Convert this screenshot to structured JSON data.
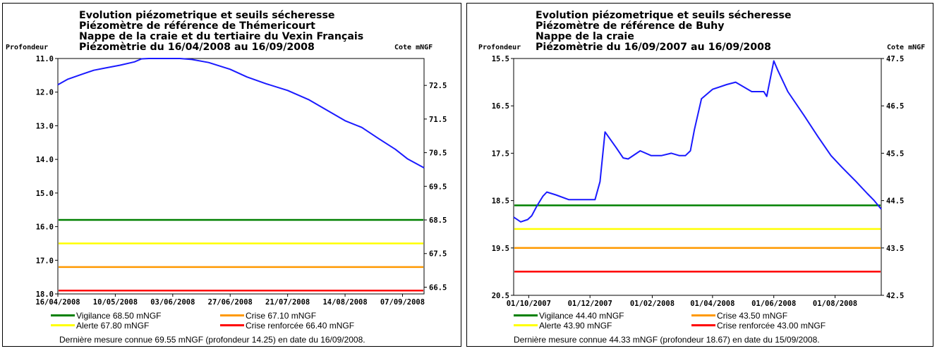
{
  "chart_data": [
    {
      "type": "line",
      "title_lines": [
        "Evolution piézometrique et seuils sécheresse",
        "Piézomètre de référence de Thémericourt",
        "Nappe de la craie et du tertiaire du Vexin Français",
        "Piézomètrie du 16/04/2008 au 16/09/2008"
      ],
      "left_axis_label": "Profondeur",
      "right_axis_label": "Cote mNGF",
      "x_range": [
        "2008-04-16",
        "2008-09-16"
      ],
      "x_ticks": [
        "16/04/2008",
        "10/05/2008",
        "03/06/2008",
        "27/06/2008",
        "21/07/2008",
        "14/08/2008",
        "07/09/2008"
      ],
      "x_tick_dates": [
        "2008-04-16",
        "2008-05-10",
        "2008-06-03",
        "2008-06-27",
        "2008-07-21",
        "2008-08-14",
        "2008-09-07"
      ],
      "left_ticks": [
        "11.0",
        "12.0",
        "13.0",
        "14.0",
        "15.0",
        "16.0",
        "17.0",
        "18.0"
      ],
      "right_ticks": [
        "72.5",
        "71.5",
        "70.5",
        "69.5",
        "68.5",
        "67.5",
        "66.5"
      ],
      "depth_range": [
        11.0,
        18.0
      ],
      "elevation_range": [
        66.3,
        73.3
      ],
      "series": [
        {
          "unit": "profondeur",
          "color": "#1a1aff",
          "x": [
            "2008-04-16",
            "2008-04-20",
            "2008-04-26",
            "2008-05-01",
            "2008-05-06",
            "2008-05-12",
            "2008-05-18",
            "2008-05-21",
            "2008-05-24",
            "2008-06-01",
            "2008-06-06",
            "2008-06-11",
            "2008-06-18",
            "2008-06-27",
            "2008-07-04",
            "2008-07-12",
            "2008-07-21",
            "2008-07-30",
            "2008-08-06",
            "2008-08-14",
            "2008-08-21",
            "2008-08-28",
            "2008-09-04",
            "2008-09-09",
            "2008-09-16"
          ],
          "y": [
            11.78,
            11.62,
            11.47,
            11.35,
            11.28,
            11.2,
            11.1,
            11.01,
            11.0,
            11.0,
            11.0,
            11.03,
            11.12,
            11.32,
            11.55,
            11.75,
            11.95,
            12.23,
            12.52,
            12.85,
            13.05,
            13.38,
            13.7,
            13.98,
            14.25
          ]
        }
      ],
      "thresholds": [
        {
          "label": "Vigilance 68.50 mNGF",
          "value": 68.5,
          "color": "#008000"
        },
        {
          "label": "Crise 67.10 mNGF",
          "value": 67.1,
          "color": "#ff9900"
        },
        {
          "label": "Alerte 67.80 mNGF",
          "value": 67.8,
          "color": "#ffff00"
        },
        {
          "label": "Crise renforcée 66.40 mNGF",
          "value": 66.4,
          "color": "#ff0000"
        }
      ],
      "last_measure": "Dernière mesure connue 69.55 mNGF (profondeur  14.25) en date du 16/09/2008."
    },
    {
      "type": "line",
      "title_lines": [
        "Evolution piézometrique et seuils sécheresse",
        "Piézomètre de référence de Buhy",
        "Nappe de la craie",
        "Piézomètrie du 16/09/2007 au 16/09/2008"
      ],
      "left_axis_label": "Profondeur",
      "right_axis_label": "Cote mNGF",
      "x_range": [
        "2007-09-16",
        "2008-09-16"
      ],
      "x_ticks": [
        "01/10/2007",
        "01/12/2007",
        "01/02/2008",
        "01/04/2008",
        "01/06/2008",
        "01/08/2008"
      ],
      "x_tick_dates": [
        "2007-10-01",
        "2007-12-01",
        "2008-02-01",
        "2008-04-01",
        "2008-06-01",
        "2008-08-01"
      ],
      "left_ticks": [
        "15.5",
        "16.5",
        "17.5",
        "18.5",
        "19.5",
        "20.5"
      ],
      "right_ticks": [
        "47.5",
        "46.5",
        "45.5",
        "44.5",
        "43.5",
        "42.5"
      ],
      "depth_range": [
        15.5,
        20.5
      ],
      "elevation_range": [
        42.5,
        47.5
      ],
      "series": [
        {
          "unit": "profondeur",
          "color": "#1a1aff",
          "x": [
            "2007-09-16",
            "2007-09-23",
            "2007-09-30",
            "2007-10-04",
            "2007-10-09",
            "2007-10-15",
            "2007-10-19",
            "2007-10-28",
            "2007-11-10",
            "2007-11-22",
            "2007-11-29",
            "2007-12-06",
            "2007-12-11",
            "2007-12-16",
            "2007-12-27",
            "2008-01-03",
            "2008-01-08",
            "2008-01-20",
            "2008-01-31",
            "2008-02-10",
            "2008-02-20",
            "2008-02-28",
            "2008-03-05",
            "2008-03-10",
            "2008-03-14",
            "2008-03-21",
            "2008-04-01",
            "2008-04-15",
            "2008-04-24",
            "2008-05-10",
            "2008-05-22",
            "2008-05-25",
            "2008-06-01",
            "2008-06-05",
            "2008-06-15",
            "2008-07-01",
            "2008-07-15",
            "2008-07-28",
            "2008-08-08",
            "2008-08-22",
            "2008-09-02",
            "2008-09-09",
            "2008-09-16"
          ],
          "y": [
            18.85,
            18.95,
            18.9,
            18.82,
            18.62,
            18.41,
            18.32,
            18.38,
            18.48,
            18.48,
            18.48,
            18.48,
            18.1,
            17.05,
            17.38,
            17.6,
            17.62,
            17.45,
            17.55,
            17.55,
            17.5,
            17.55,
            17.55,
            17.45,
            17.0,
            16.35,
            16.15,
            16.05,
            16.0,
            16.2,
            16.2,
            16.3,
            15.55,
            15.75,
            16.2,
            16.7,
            17.15,
            17.55,
            17.8,
            18.1,
            18.35,
            18.5,
            18.68
          ]
        }
      ],
      "thresholds": [
        {
          "label": "Vigilance 44.40 mNGF",
          "value": 44.4,
          "color": "#008000"
        },
        {
          "label": "Crise 43.50 mNGF",
          "value": 43.5,
          "color": "#ff9900"
        },
        {
          "label": "Alerte 43.90 mNGF",
          "value": 43.9,
          "color": "#ffff00"
        },
        {
          "label": "Crise renforcée 43.00 mNGF",
          "value": 43.0,
          "color": "#ff0000"
        }
      ],
      "last_measure": "Dernière mesure connue 44.33 mNGF (profondeur  18.67) en date du 15/09/2008."
    }
  ]
}
